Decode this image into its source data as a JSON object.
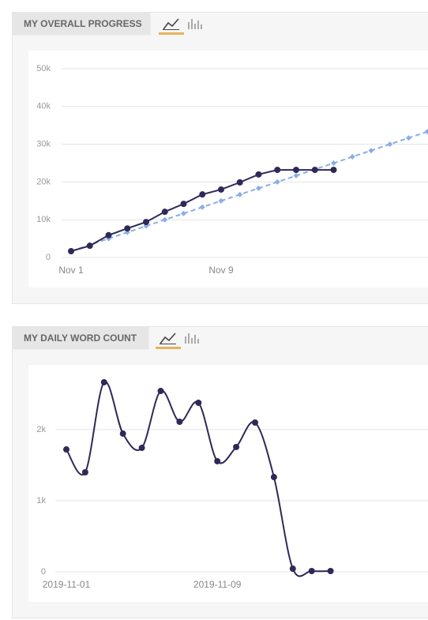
{
  "chart_data": [
    {
      "type": "line",
      "title": "MY OVERALL PROGRESS",
      "categories": [
        "Nov 1",
        null,
        null,
        null,
        null,
        null,
        null,
        null,
        "Nov 9",
        null,
        null,
        null,
        null,
        null,
        null,
        null,
        null,
        null,
        null,
        null
      ],
      "series": [
        {
          "color": "#2e2957",
          "line_style": "solid",
          "marker": "circle",
          "values": [
            1670,
            3100,
            5900,
            7700,
            9400,
            12100,
            14200,
            16700,
            18000,
            19900,
            22000,
            23200,
            23200,
            23200,
            23200,
            null,
            null,
            null,
            null,
            null
          ]
        },
        {
          "color": "#8aaee3",
          "line_style": "dashed",
          "marker": "diamond",
          "values": [
            1667,
            3333,
            5000,
            6667,
            8333,
            10000,
            11667,
            13333,
            15000,
            16667,
            18333,
            20000,
            21667,
            23333,
            25000,
            26667,
            28333,
            30000,
            31667,
            33333
          ]
        }
      ],
      "ylim": [
        0,
        50000
      ],
      "yticks": [
        0,
        {
          "value": 10000,
          "label": "10k"
        },
        {
          "value": 20000,
          "label": "20k"
        },
        {
          "value": 30000,
          "label": "30k"
        },
        {
          "value": 40000,
          "label": "40k"
        },
        {
          "value": 50000,
          "label": "50k"
        }
      ],
      "grid": true
    },
    {
      "type": "line",
      "title": "MY DAILY WORD COUNT",
      "smooth": true,
      "categories": [
        "2019-11-01",
        null,
        null,
        null,
        null,
        null,
        null,
        null,
        "2019-11-09",
        null,
        null,
        null,
        null,
        null,
        null
      ],
      "series": [
        {
          "color": "#2e2957",
          "line_style": "solid",
          "marker": "circle",
          "values": [
            1722,
            1400,
            2667,
            1944,
            1744,
            2544,
            2111,
            2378,
            1556,
            1756,
            2100,
            1333,
            44,
            11,
            11
          ]
        }
      ],
      "ylim": [
        0,
        2800
      ],
      "yticks": [
        0,
        {
          "value": 1000,
          "label": "1k"
        },
        {
          "value": 2000,
          "label": "2k"
        }
      ],
      "grid": true
    }
  ]
}
